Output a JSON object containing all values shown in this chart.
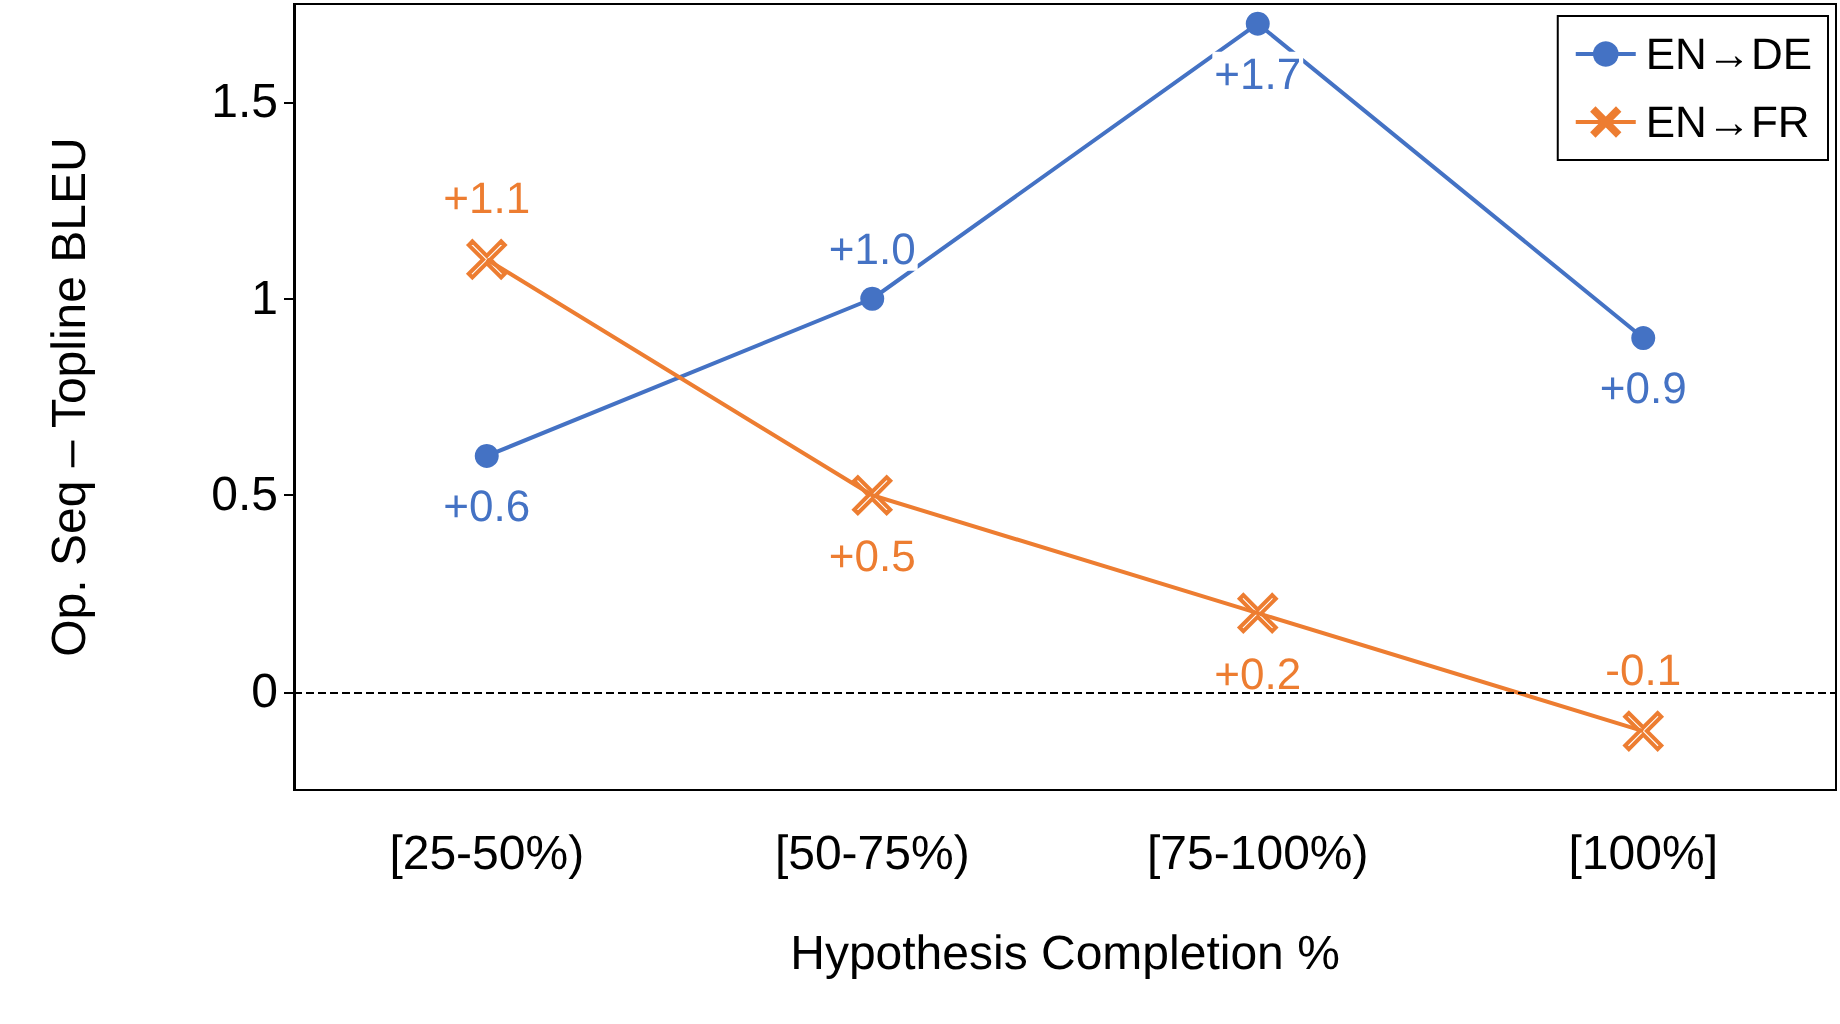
{
  "chart_data": {
    "type": "line",
    "xlabel": "Hypothesis Completion %",
    "ylabel": "Op. Seq – Topline BLEU",
    "categories": [
      "[25-50%)",
      "[50-75%)",
      "[75-100%)",
      "[100%]"
    ],
    "series": [
      {
        "name": "EN→DE",
        "color": "#4472c4",
        "marker": "circle",
        "values": [
          0.6,
          1.0,
          1.7,
          0.9
        ],
        "value_labels": [
          "+0.6",
          "+1.0",
          "+1.7",
          "+0.9"
        ]
      },
      {
        "name": "EN→FR",
        "color": "#ed7d31",
        "marker": "cross",
        "values": [
          1.1,
          0.5,
          0.2,
          -0.1
        ],
        "value_labels": [
          "+1.1",
          "+0.5",
          "+0.2",
          "-0.1"
        ]
      }
    ],
    "ylim": [
      -0.25,
      1.75
    ],
    "yticks": [
      0,
      0.5,
      1,
      1.5
    ],
    "grid": false,
    "legend": "top right",
    "ref_lines": [
      {
        "axis": "y",
        "value": 0,
        "color": "#000000",
        "line_style": "dashed"
      }
    ]
  }
}
